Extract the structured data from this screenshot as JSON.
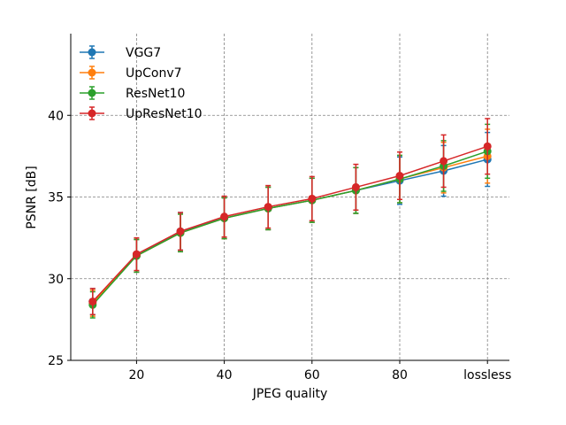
{
  "chart_data": {
    "type": "line",
    "xlabel": "JPEG quality",
    "ylabel": "PSNR [dB]",
    "x": [
      10,
      20,
      30,
      40,
      50,
      60,
      70,
      80,
      90,
      100
    ],
    "x_tick_values": [
      20,
      40,
      60,
      80,
      100
    ],
    "x_tick_labels": [
      "20",
      "40",
      "60",
      "80",
      "lossless"
    ],
    "xlim": [
      5,
      105
    ],
    "ylim": [
      25,
      45
    ],
    "y_ticks": [
      25,
      30,
      35,
      40
    ],
    "grid": {
      "on": true,
      "style": "dashed",
      "color": "#808080"
    },
    "legend": "top-left",
    "error_bars": true,
    "series": [
      {
        "name": "VGG7",
        "color": "#1f77b4",
        "values": [
          28.6,
          31.4,
          32.9,
          33.7,
          34.3,
          34.8,
          35.4,
          36.0,
          36.6,
          37.3
        ],
        "errors": [
          0.8,
          1.0,
          1.15,
          1.25,
          1.3,
          1.35,
          1.4,
          1.45,
          1.55,
          1.65
        ]
      },
      {
        "name": "UpConv7",
        "color": "#ff7f0e",
        "values": [
          28.5,
          31.4,
          32.8,
          33.7,
          34.3,
          34.8,
          35.4,
          36.1,
          36.8,
          37.5
        ],
        "errors": [
          0.8,
          1.0,
          1.15,
          1.25,
          1.3,
          1.35,
          1.4,
          1.45,
          1.55,
          1.65
        ]
      },
      {
        "name": "ResNet10",
        "color": "#2ca02c",
        "values": [
          28.4,
          31.4,
          32.8,
          33.7,
          34.3,
          34.8,
          35.4,
          36.1,
          36.9,
          37.8
        ],
        "errors": [
          0.8,
          1.0,
          1.15,
          1.25,
          1.3,
          1.35,
          1.4,
          1.45,
          1.55,
          1.65
        ]
      },
      {
        "name": "UpResNet10",
        "color": "#d62728",
        "values": [
          28.6,
          31.5,
          32.9,
          33.8,
          34.4,
          34.9,
          35.6,
          36.3,
          37.2,
          38.1
        ],
        "errors": [
          0.8,
          1.0,
          1.15,
          1.25,
          1.3,
          1.35,
          1.4,
          1.45,
          1.6,
          1.7
        ]
      }
    ]
  }
}
